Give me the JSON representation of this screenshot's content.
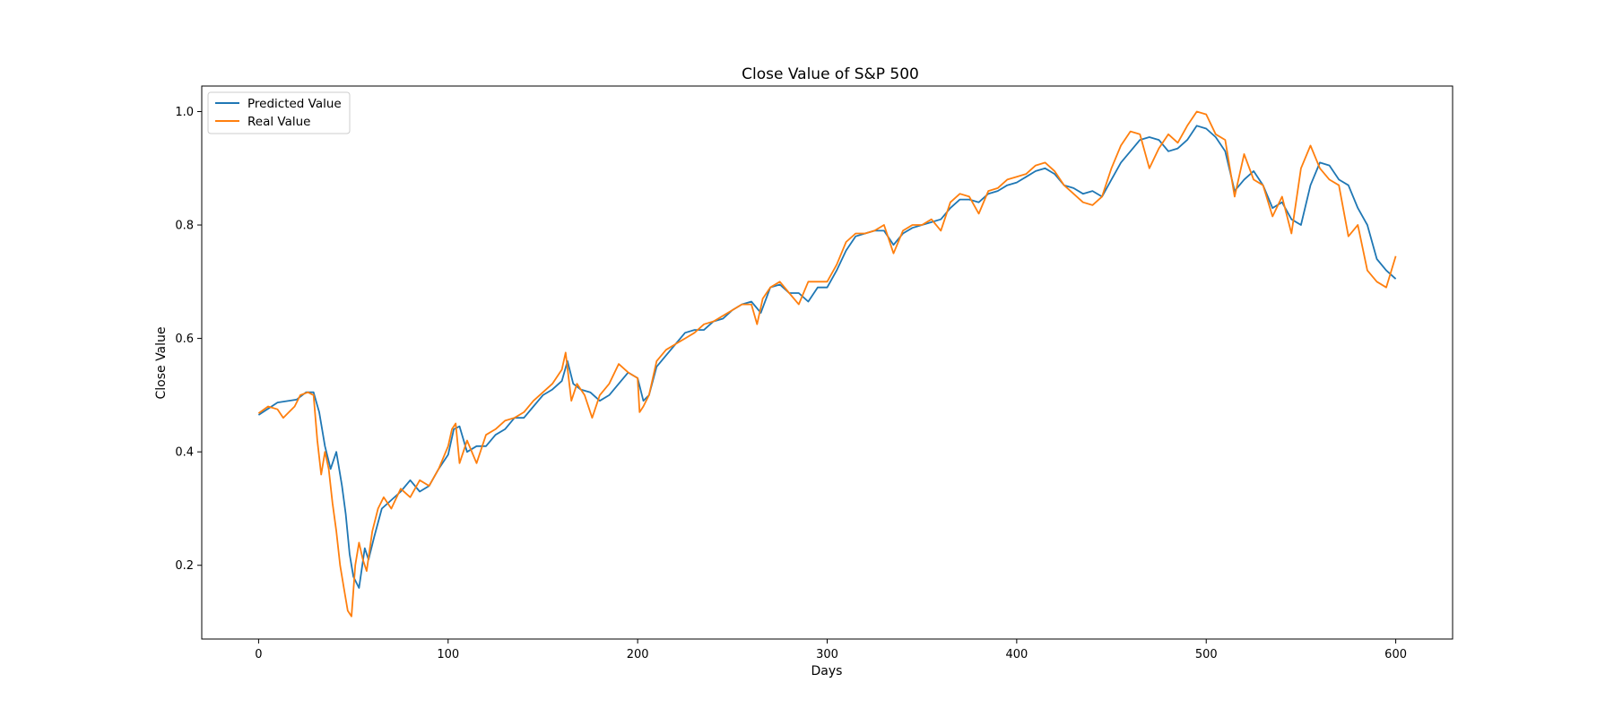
{
  "chart_data": {
    "type": "line",
    "title": "Close Value of S&P 500",
    "xlabel": "Days",
    "ylabel": "Close Value",
    "xlim": [
      -30,
      630
    ],
    "ylim": [
      0.07,
      1.045
    ],
    "xticks": [
      0,
      100,
      200,
      300,
      400,
      500,
      600
    ],
    "yticks": [
      0.2,
      0.4,
      0.6,
      0.8,
      1.0
    ],
    "ytick_labels": [
      "0.2",
      "0.4",
      "0.6",
      "0.8",
      "1.0"
    ],
    "grid": false,
    "legend_position": "top-left",
    "series": [
      {
        "name": "Predicted Value",
        "color": "#1f77b4",
        "x": [
          0,
          10,
          20,
          25,
          29,
          32,
          35,
          38,
          41,
          44,
          46,
          48,
          50,
          53,
          56,
          58,
          61,
          65,
          70,
          75,
          80,
          85,
          90,
          95,
          100,
          103,
          106,
          110,
          115,
          120,
          125,
          130,
          135,
          140,
          145,
          150,
          155,
          160,
          163,
          166,
          170,
          175,
          180,
          185,
          190,
          195,
          200,
          203,
          206,
          210,
          215,
          220,
          225,
          230,
          235,
          240,
          245,
          250,
          255,
          260,
          265,
          270,
          275,
          280,
          285,
          290,
          295,
          300,
          305,
          310,
          315,
          320,
          325,
          330,
          335,
          340,
          345,
          350,
          355,
          360,
          365,
          370,
          375,
          380,
          385,
          390,
          395,
          400,
          405,
          410,
          415,
          420,
          425,
          430,
          435,
          440,
          445,
          450,
          455,
          460,
          465,
          470,
          475,
          480,
          485,
          490,
          495,
          500,
          505,
          510,
          515,
          520,
          525,
          530,
          535,
          540,
          545,
          550,
          555,
          560,
          565,
          570,
          575,
          580,
          585,
          590,
          595,
          600
        ],
        "values": [
          0.465,
          0.487,
          0.492,
          0.505,
          0.505,
          0.47,
          0.41,
          0.37,
          0.4,
          0.34,
          0.29,
          0.22,
          0.18,
          0.16,
          0.23,
          0.21,
          0.25,
          0.3,
          0.315,
          0.33,
          0.35,
          0.33,
          0.34,
          0.37,
          0.395,
          0.44,
          0.445,
          0.4,
          0.41,
          0.41,
          0.43,
          0.44,
          0.46,
          0.46,
          0.48,
          0.5,
          0.51,
          0.525,
          0.56,
          0.52,
          0.51,
          0.505,
          0.49,
          0.5,
          0.52,
          0.54,
          0.53,
          0.49,
          0.5,
          0.55,
          0.57,
          0.59,
          0.61,
          0.615,
          0.615,
          0.63,
          0.635,
          0.65,
          0.66,
          0.665,
          0.645,
          0.69,
          0.695,
          0.68,
          0.68,
          0.665,
          0.69,
          0.69,
          0.72,
          0.755,
          0.78,
          0.785,
          0.79,
          0.79,
          0.765,
          0.785,
          0.795,
          0.8,
          0.805,
          0.81,
          0.83,
          0.845,
          0.845,
          0.84,
          0.855,
          0.86,
          0.87,
          0.875,
          0.885,
          0.895,
          0.9,
          0.89,
          0.87,
          0.865,
          0.855,
          0.86,
          0.85,
          0.88,
          0.91,
          0.93,
          0.95,
          0.955,
          0.95,
          0.93,
          0.935,
          0.95,
          0.975,
          0.97,
          0.955,
          0.93,
          0.86,
          0.88,
          0.895,
          0.87,
          0.83,
          0.84,
          0.81,
          0.8,
          0.87,
          0.91,
          0.905,
          0.88,
          0.87,
          0.83,
          0.8,
          0.74,
          0.72,
          0.705
        ]
      },
      {
        "name": "Real Value",
        "color": "#ff7f0e",
        "x": [
          0,
          5,
          10,
          13,
          16,
          19,
          22,
          26,
          29,
          31,
          33,
          35,
          37,
          39,
          41,
          43,
          45,
          47,
          49,
          51,
          53,
          55,
          57,
          60,
          63,
          66,
          70,
          75,
          80,
          85,
          90,
          95,
          100,
          102,
          104,
          106,
          108,
          110,
          115,
          120,
          125,
          130,
          135,
          140,
          145,
          150,
          155,
          160,
          162,
          165,
          168,
          172,
          176,
          180,
          185,
          190,
          195,
          200,
          201,
          203,
          206,
          210,
          215,
          220,
          225,
          230,
          235,
          240,
          245,
          250,
          255,
          260,
          263,
          266,
          270,
          275,
          280,
          285,
          290,
          295,
          300,
          305,
          310,
          315,
          320,
          325,
          330,
          335,
          340,
          345,
          350,
          355,
          360,
          365,
          370,
          375,
          380,
          385,
          390,
          395,
          400,
          405,
          410,
          415,
          420,
          425,
          430,
          435,
          440,
          445,
          450,
          455,
          460,
          465,
          470,
          475,
          480,
          485,
          490,
          495,
          500,
          505,
          510,
          515,
          520,
          525,
          530,
          535,
          540,
          545,
          550,
          555,
          560,
          565,
          570,
          575,
          580,
          585,
          590,
          595,
          600
        ],
        "values": [
          0.468,
          0.48,
          0.475,
          0.46,
          0.47,
          0.48,
          0.5,
          0.505,
          0.5,
          0.42,
          0.36,
          0.4,
          0.37,
          0.31,
          0.26,
          0.2,
          0.16,
          0.12,
          0.11,
          0.2,
          0.24,
          0.21,
          0.19,
          0.26,
          0.3,
          0.32,
          0.3,
          0.335,
          0.32,
          0.35,
          0.34,
          0.37,
          0.41,
          0.44,
          0.45,
          0.38,
          0.4,
          0.42,
          0.38,
          0.43,
          0.44,
          0.455,
          0.46,
          0.47,
          0.49,
          0.505,
          0.52,
          0.545,
          0.575,
          0.49,
          0.52,
          0.5,
          0.46,
          0.5,
          0.52,
          0.555,
          0.54,
          0.53,
          0.47,
          0.48,
          0.5,
          0.56,
          0.58,
          0.59,
          0.6,
          0.61,
          0.625,
          0.63,
          0.64,
          0.65,
          0.66,
          0.66,
          0.625,
          0.67,
          0.69,
          0.7,
          0.68,
          0.66,
          0.7,
          0.7,
          0.7,
          0.73,
          0.77,
          0.785,
          0.785,
          0.79,
          0.8,
          0.75,
          0.79,
          0.8,
          0.8,
          0.81,
          0.79,
          0.84,
          0.855,
          0.85,
          0.82,
          0.86,
          0.865,
          0.88,
          0.885,
          0.89,
          0.905,
          0.91,
          0.895,
          0.87,
          0.855,
          0.84,
          0.835,
          0.85,
          0.9,
          0.94,
          0.965,
          0.96,
          0.9,
          0.935,
          0.96,
          0.945,
          0.975,
          1.0,
          0.995,
          0.96,
          0.95,
          0.85,
          0.925,
          0.88,
          0.87,
          0.815,
          0.85,
          0.785,
          0.9,
          0.94,
          0.9,
          0.88,
          0.87,
          0.78,
          0.8,
          0.72,
          0.7,
          0.69,
          0.745
        ]
      }
    ]
  }
}
